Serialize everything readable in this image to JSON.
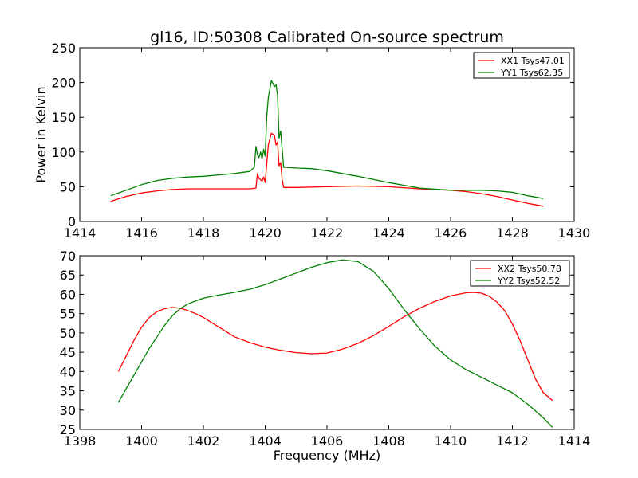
{
  "chart_data": [
    {
      "type": "line",
      "title": "gl16, ID:50308 Calibrated On-source spectrum",
      "xlabel": "",
      "ylabel": "Power in Kelvin",
      "xlim": [
        1414,
        1430
      ],
      "ylim": [
        0,
        250
      ],
      "xticks": [
        "1414",
        "1416",
        "1418",
        "1420",
        "1422",
        "1424",
        "1426",
        "1428",
        "1430"
      ],
      "yticks": [
        "0",
        "50",
        "100",
        "150",
        "200",
        "250"
      ],
      "grid": false,
      "legend_position": "top-right",
      "series": [
        {
          "name": "XX1 Tsys47.01",
          "color": "#ff0000",
          "x": [
            1415.0,
            1415.5,
            1416.0,
            1416.5,
            1417.0,
            1417.5,
            1418.0,
            1418.5,
            1419.0,
            1419.5,
            1419.7,
            1419.75,
            1419.8,
            1419.9,
            1419.95,
            1420.0,
            1420.1,
            1420.2,
            1420.3,
            1420.35,
            1420.4,
            1420.45,
            1420.5,
            1420.55,
            1420.6,
            1421.0,
            1422.0,
            1423.0,
            1424.0,
            1425.0,
            1426.0,
            1426.5,
            1427.0,
            1427.5,
            1428.0,
            1428.5,
            1429.0
          ],
          "y": [
            29,
            36,
            41,
            44,
            46,
            47,
            47,
            47,
            47,
            47,
            48,
            69,
            62,
            58,
            64,
            56,
            110,
            127,
            124,
            110,
            114,
            80,
            85,
            60,
            49,
            49,
            50,
            51,
            50,
            47,
            45,
            43,
            40,
            36,
            31,
            26,
            22
          ]
        },
        {
          "name": "YY1 Tsys62.35",
          "color": "#008000",
          "x": [
            1415.0,
            1415.5,
            1416.0,
            1416.5,
            1417.0,
            1417.5,
            1418.0,
            1418.5,
            1419.0,
            1419.5,
            1419.65,
            1419.7,
            1419.75,
            1419.8,
            1419.85,
            1419.9,
            1419.95,
            1420.0,
            1420.05,
            1420.1,
            1420.2,
            1420.3,
            1420.35,
            1420.4,
            1420.45,
            1420.5,
            1420.6,
            1421.0,
            1421.5,
            1422.0,
            1422.5,
            1423.0,
            1424.0,
            1425.0,
            1426.0,
            1427.0,
            1427.5,
            1428.0,
            1428.5,
            1429.0
          ],
          "y": [
            37,
            45,
            53,
            59,
            62,
            64,
            65,
            67,
            69,
            72,
            78,
            108,
            96,
            92,
            100,
            90,
            104,
            94,
            150,
            178,
            203,
            194,
            197,
            182,
            120,
            130,
            78,
            77,
            76,
            73,
            69,
            65,
            56,
            48,
            45,
            45,
            44,
            42,
            37,
            33
          ]
        }
      ]
    },
    {
      "type": "line",
      "title": "",
      "xlabel": "Frequency (MHz)",
      "ylabel": "",
      "xlim": [
        1398,
        1414
      ],
      "ylim": [
        25,
        70
      ],
      "xticks": [
        "1398",
        "1400",
        "1402",
        "1404",
        "1406",
        "1408",
        "1410",
        "1412",
        "1414"
      ],
      "yticks": [
        "25",
        "30",
        "35",
        "40",
        "45",
        "50",
        "55",
        "60",
        "65",
        "70"
      ],
      "grid": false,
      "legend_position": "top-right",
      "series": [
        {
          "name": "XX2 Tsys50.78",
          "color": "#ff0000",
          "x": [
            1399.25,
            1399.5,
            1399.75,
            1400.0,
            1400.25,
            1400.5,
            1400.75,
            1401.0,
            1401.25,
            1401.5,
            1401.75,
            1402.0,
            1402.5,
            1403.0,
            1403.5,
            1404.0,
            1404.5,
            1405.0,
            1405.5,
            1406.0,
            1406.5,
            1407.0,
            1407.5,
            1408.0,
            1408.5,
            1409.0,
            1409.5,
            1410.0,
            1410.5,
            1410.75,
            1411.0,
            1411.25,
            1411.5,
            1411.75,
            1412.0,
            1412.25,
            1412.5,
            1412.75,
            1413.0,
            1413.3
          ],
          "y": [
            40,
            44,
            48,
            51.5,
            54,
            55.5,
            56.3,
            56.6,
            56.4,
            55.8,
            55,
            54,
            51.5,
            49,
            47.5,
            46.3,
            45.5,
            44.9,
            44.6,
            44.8,
            45.8,
            47.3,
            49.3,
            51.7,
            54.2,
            56.4,
            58.2,
            59.6,
            60.4,
            60.5,
            60.3,
            59.5,
            58,
            55.8,
            52.3,
            48,
            43,
            38,
            34.5,
            32.5
          ]
        },
        {
          "name": "YY2 Tsys52.52",
          "color": "#008000",
          "x": [
            1399.25,
            1399.5,
            1399.75,
            1400.0,
            1400.25,
            1400.5,
            1400.75,
            1401.0,
            1401.25,
            1401.5,
            1401.75,
            1402.0,
            1402.5,
            1403.0,
            1403.5,
            1404.0,
            1404.5,
            1405.0,
            1405.5,
            1406.0,
            1406.5,
            1407.0,
            1407.5,
            1408.0,
            1408.5,
            1409.0,
            1409.5,
            1410.0,
            1410.5,
            1411.0,
            1411.5,
            1412.0,
            1412.5,
            1413.0,
            1413.3
          ],
          "y": [
            32,
            35.5,
            39,
            42.5,
            46,
            49,
            52,
            54.5,
            56.3,
            57.5,
            58.3,
            59,
            59.8,
            60.5,
            61.3,
            62.5,
            64,
            65.5,
            67,
            68.2,
            68.9,
            68.5,
            66,
            61.5,
            56,
            51,
            46.5,
            43,
            40.5,
            38.5,
            36.5,
            34.5,
            31.5,
            28,
            25.5
          ]
        }
      ]
    }
  ]
}
